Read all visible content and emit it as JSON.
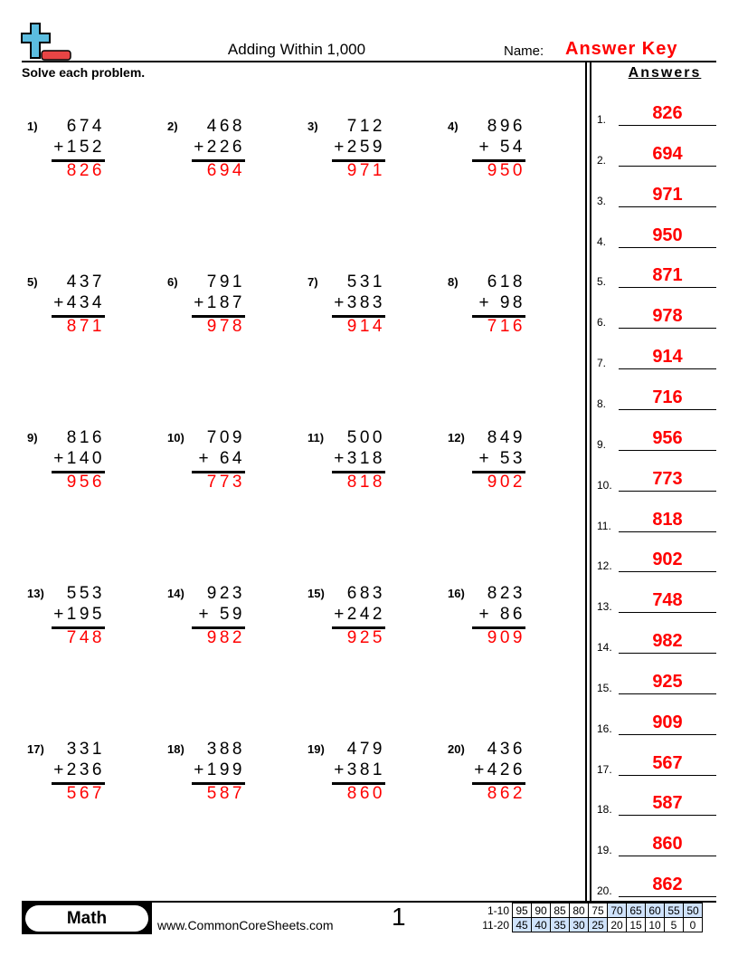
{
  "header": {
    "title": "Adding Within 1,000",
    "name_label": "Name:",
    "name_value": "Answer Key",
    "logo": "plus-minus-logo"
  },
  "instructions": "Solve each problem.",
  "answers_heading": "Answers",
  "colors": {
    "answer": "#ff0000",
    "highlight": "#cfe2fb",
    "logo_plus": "#5bbde0",
    "logo_minus": "#e84545"
  },
  "problems": [
    {
      "n": "1)",
      "a": "674",
      "b": "+152",
      "s": "826"
    },
    {
      "n": "2)",
      "a": "468",
      "b": "+226",
      "s": "694"
    },
    {
      "n": "3)",
      "a": "712",
      "b": "+259",
      "s": "971"
    },
    {
      "n": "4)",
      "a": "896",
      "b": "+ 54",
      "s": "950"
    },
    {
      "n": "5)",
      "a": "437",
      "b": "+434",
      "s": "871"
    },
    {
      "n": "6)",
      "a": "791",
      "b": "+187",
      "s": "978"
    },
    {
      "n": "7)",
      "a": "531",
      "b": "+383",
      "s": "914"
    },
    {
      "n": "8)",
      "a": "618",
      "b": "+ 98",
      "s": "716"
    },
    {
      "n": "9)",
      "a": "816",
      "b": "+140",
      "s": "956"
    },
    {
      "n": "10)",
      "a": "709",
      "b": "+ 64",
      "s": "773"
    },
    {
      "n": "11)",
      "a": "500",
      "b": "+318",
      "s": "818"
    },
    {
      "n": "12)",
      "a": "849",
      "b": "+ 53",
      "s": "902"
    },
    {
      "n": "13)",
      "a": "553",
      "b": "+195",
      "s": "748"
    },
    {
      "n": "14)",
      "a": "923",
      "b": "+ 59",
      "s": "982"
    },
    {
      "n": "15)",
      "a": "683",
      "b": "+242",
      "s": "925"
    },
    {
      "n": "16)",
      "a": "823",
      "b": "+ 86",
      "s": "909"
    },
    {
      "n": "17)",
      "a": "331",
      "b": "+236",
      "s": "567"
    },
    {
      "n": "18)",
      "a": "388",
      "b": "+199",
      "s": "587"
    },
    {
      "n": "19)",
      "a": "479",
      "b": "+381",
      "s": "860"
    },
    {
      "n": "20)",
      "a": "436",
      "b": "+426",
      "s": "862"
    }
  ],
  "answers": [
    {
      "n": "1.",
      "v": "826"
    },
    {
      "n": "2.",
      "v": "694"
    },
    {
      "n": "3.",
      "v": "971"
    },
    {
      "n": "4.",
      "v": "950"
    },
    {
      "n": "5.",
      "v": "871"
    },
    {
      "n": "6.",
      "v": "978"
    },
    {
      "n": "7.",
      "v": "914"
    },
    {
      "n": "8.",
      "v": "716"
    },
    {
      "n": "9.",
      "v": "956"
    },
    {
      "n": "10.",
      "v": "773"
    },
    {
      "n": "11.",
      "v": "818"
    },
    {
      "n": "12.",
      "v": "902"
    },
    {
      "n": "13.",
      "v": "748"
    },
    {
      "n": "14.",
      "v": "982"
    },
    {
      "n": "15.",
      "v": "925"
    },
    {
      "n": "16.",
      "v": "909"
    },
    {
      "n": "17.",
      "v": "567"
    },
    {
      "n": "18.",
      "v": "587"
    },
    {
      "n": "19.",
      "v": "860"
    },
    {
      "n": "20.",
      "v": "862"
    }
  ],
  "footer": {
    "subject": "Math",
    "site": "www.CommonCoreSheets.com",
    "page": "1",
    "score_rows": [
      {
        "label": "1-10",
        "cells": [
          "95",
          "90",
          "85",
          "80",
          "75",
          "70",
          "65",
          "60",
          "55",
          "50"
        ],
        "highlighted": [
          5,
          6,
          7,
          8,
          9
        ]
      },
      {
        "label": "11-20",
        "cells": [
          "45",
          "40",
          "35",
          "30",
          "25",
          "20",
          "15",
          "10",
          "5",
          "0"
        ],
        "highlighted": [
          0,
          1,
          2,
          3,
          4
        ]
      }
    ]
  }
}
